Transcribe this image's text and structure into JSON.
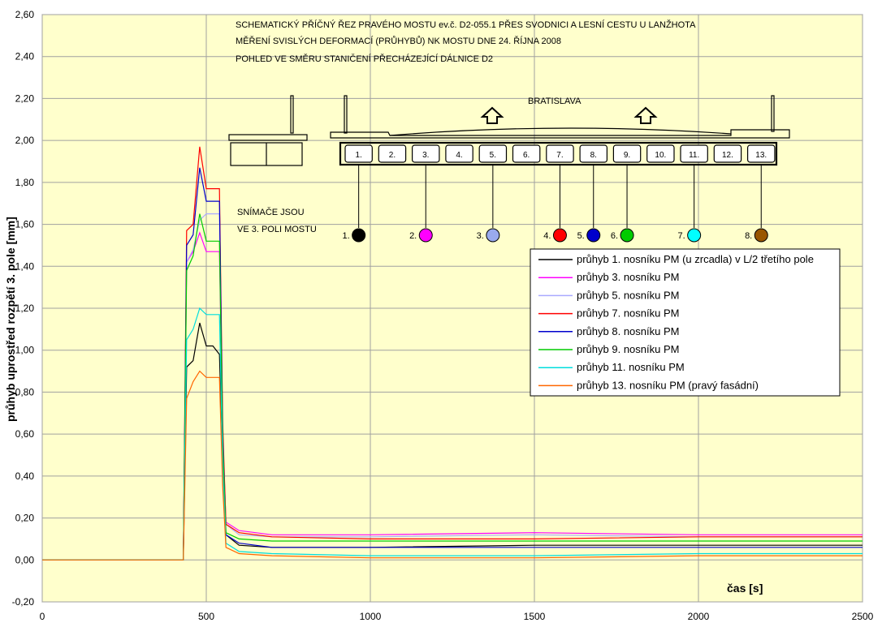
{
  "chart_data": {
    "type": "line",
    "title": "",
    "annotation": {
      "lines": [
        "SCHEMATICKÝ PŘÍČNÝ ŘEZ PRAVÉHO MOSTU ev.č. D2-055.1 PŘES SVODNICI A LESNÍ CESTU U LANŽHOTA",
        "MĚŘENÍ SVISLÝCH DEFORMACÍ (PRŮHYBŮ) NK MOSTU DNE 24. ŘÍJNA 2008",
        "POHLED VE SMĚRU STANIČENÍ PŘECHÁZEJÍCÍ DÁLNICE D2"
      ],
      "direction_label": "BRATISLAVA",
      "sensor_note": [
        "SNÍMAČE JSOU",
        "VE 3. POLI MOSTU"
      ],
      "beams": [
        "1.",
        "2.",
        "3.",
        "4.",
        "5.",
        "6.",
        "7.",
        "8.",
        "9.",
        "10.",
        "11.",
        "12.",
        "13."
      ],
      "sensors": [
        {
          "label": "1.",
          "beam": 1,
          "color": "#000000"
        },
        {
          "label": "2.",
          "beam": 3,
          "color": "#ff00ff"
        },
        {
          "label": "3.",
          "beam": 5,
          "color": "#99aaee"
        },
        {
          "label": "4.",
          "beam": 7,
          "color": "#ff0000"
        },
        {
          "label": "5.",
          "beam": 8,
          "color": "#0000cc"
        },
        {
          "label": "6.",
          "beam": 9,
          "color": "#00cc00"
        },
        {
          "label": "7.",
          "beam": 11,
          "color": "#00ffff"
        },
        {
          "label": "8.",
          "beam": 13,
          "color": "#995500"
        }
      ]
    },
    "xlabel": "čas [s]",
    "ylabel": "průhyb uprostřed rozpětí 3. pole [mm]",
    "xlim": [
      0,
      2500
    ],
    "ylim": [
      -0.2,
      2.6
    ],
    "xticks": [
      "0",
      "500",
      "1000",
      "1500",
      "2000",
      "2500"
    ],
    "yticks": [
      "-0,20",
      "0,00",
      "0,20",
      "0,40",
      "0,60",
      "0,80",
      "1,00",
      "1,20",
      "1,40",
      "1,60",
      "1,80",
      "2,00",
      "2,20",
      "2,40",
      "2,60"
    ],
    "grid": true,
    "legend_position": "right",
    "plot_background": "#ffffcc",
    "series": [
      {
        "name": "průhyb 1. nosníku PM (u zrcadla) v L/2 třetího pole",
        "color": "#000000",
        "x": [
          0,
          430,
          440,
          460,
          480,
          500,
          520,
          540,
          550,
          560,
          600,
          700,
          1000,
          1500,
          2000,
          2500
        ],
        "y": [
          0.0,
          0.0,
          0.92,
          0.95,
          1.13,
          1.02,
          1.02,
          0.98,
          0.45,
          0.12,
          0.07,
          0.06,
          0.06,
          0.07,
          0.07,
          0.07
        ]
      },
      {
        "name": "průhyb 3. nosníku PM",
        "color": "#ff00ff",
        "x": [
          0,
          430,
          440,
          460,
          480,
          500,
          520,
          540,
          550,
          560,
          600,
          700,
          1000,
          1500,
          2000,
          2500
        ],
        "y": [
          0.0,
          0.0,
          1.42,
          1.47,
          1.56,
          1.47,
          1.47,
          1.47,
          0.6,
          0.18,
          0.14,
          0.12,
          0.12,
          0.13,
          0.12,
          0.12
        ]
      },
      {
        "name": "průhyb 5. nosníku PM",
        "color": "#aaaaff",
        "x": [
          0,
          430,
          440,
          460,
          480,
          500,
          520,
          540,
          550,
          560,
          600,
          700,
          1000,
          1500,
          2000,
          2500
        ],
        "y": [
          0.0,
          0.0,
          1.42,
          1.48,
          1.62,
          1.65,
          1.65,
          1.65,
          0.6,
          0.17,
          0.12,
          0.11,
          0.11,
          0.12,
          0.11,
          0.11
        ]
      },
      {
        "name": "průhyb 7. nosníku PM",
        "color": "#ff0000",
        "x": [
          0,
          430,
          440,
          460,
          480,
          500,
          520,
          540,
          550,
          560,
          600,
          700,
          1000,
          1500,
          2000,
          2500
        ],
        "y": [
          0.0,
          0.0,
          1.57,
          1.6,
          1.97,
          1.77,
          1.77,
          1.77,
          0.65,
          0.17,
          0.13,
          0.11,
          0.1,
          0.1,
          0.11,
          0.11
        ]
      },
      {
        "name": "průhyb 8. nosníku PM",
        "color": "#0000cc",
        "x": [
          0,
          430,
          440,
          460,
          480,
          500,
          520,
          540,
          550,
          560,
          600,
          700,
          1000,
          1500,
          2000,
          2500
        ],
        "y": [
          0.0,
          0.0,
          1.5,
          1.55,
          1.87,
          1.71,
          1.71,
          1.71,
          0.6,
          0.12,
          0.08,
          0.06,
          0.06,
          0.06,
          0.06,
          0.06
        ]
      },
      {
        "name": "průhyb 9. nosníku PM",
        "color": "#00cc00",
        "x": [
          0,
          430,
          440,
          460,
          480,
          500,
          520,
          540,
          550,
          560,
          600,
          700,
          1000,
          1500,
          2000,
          2500
        ],
        "y": [
          0.0,
          0.0,
          1.38,
          1.45,
          1.65,
          1.52,
          1.52,
          1.52,
          0.55,
          0.13,
          0.1,
          0.09,
          0.09,
          0.09,
          0.09,
          0.09
        ]
      },
      {
        "name": "průhyb 11. nosníku PM",
        "color": "#00dddd",
        "x": [
          0,
          430,
          440,
          460,
          480,
          500,
          520,
          540,
          550,
          560,
          600,
          700,
          1000,
          1500,
          2000,
          2500
        ],
        "y": [
          0.0,
          0.0,
          1.05,
          1.1,
          1.2,
          1.17,
          1.17,
          1.17,
          0.45,
          0.08,
          0.04,
          0.03,
          0.02,
          0.02,
          0.03,
          0.03
        ]
      },
      {
        "name": "průhyb 13. nosníku PM (pravý fasádní)",
        "color": "#ff6600",
        "x": [
          0,
          430,
          440,
          460,
          480,
          500,
          520,
          540,
          550,
          560,
          600,
          700,
          1000,
          1500,
          2000,
          2500
        ],
        "y": [
          0.0,
          0.0,
          0.77,
          0.85,
          0.9,
          0.87,
          0.87,
          0.87,
          0.35,
          0.06,
          0.03,
          0.02,
          0.01,
          0.01,
          0.02,
          0.02
        ]
      }
    ]
  }
}
